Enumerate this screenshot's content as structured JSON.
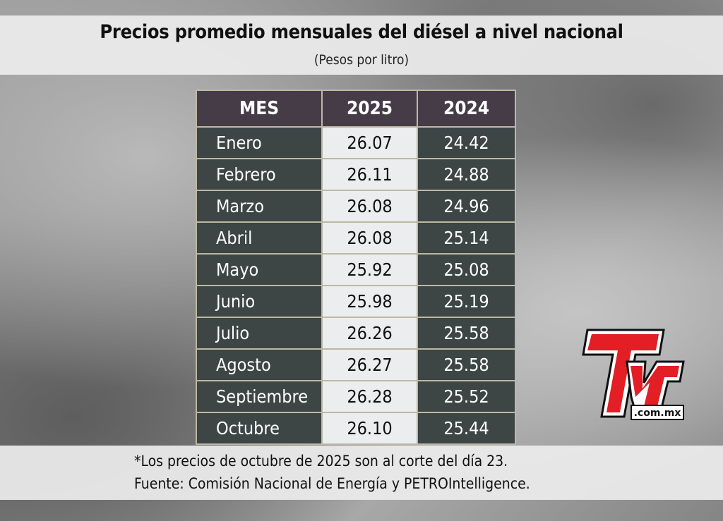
{
  "header": {
    "title": "Precios promedio mensuales del diésel a nivel nacional",
    "subtitle": "(Pesos por litro)"
  },
  "chart_data": {
    "type": "table",
    "title": "Precios promedio mensuales del diésel a nivel nacional",
    "subtitle": "(Pesos por litro)",
    "columns": [
      "MES",
      "2025",
      "2024"
    ],
    "rows": [
      [
        "Enero",
        "26.07",
        "24.42"
      ],
      [
        "Febrero",
        "26.11",
        "24.88"
      ],
      [
        "Marzo",
        "26.08",
        "24.96"
      ],
      [
        "Abril",
        "26.08",
        "25.14"
      ],
      [
        "Mayo",
        "25.92",
        "25.08"
      ],
      [
        "Junio",
        "25.98",
        "25.19"
      ],
      [
        "Julio",
        "26.26",
        "25.58"
      ],
      [
        "Agosto",
        "26.27",
        "25.58"
      ],
      [
        "Septiembre",
        "26.28",
        "25.52"
      ],
      [
        "Octubre",
        "26.10",
        "25.44"
      ]
    ]
  },
  "footer": {
    "note": "*Los precios de octubre de 2025 son al corte del día 23.",
    "source": "Fuente: Comisión Nacional de Energía y PETROIntelligence."
  },
  "logo": {
    "text": "TyT",
    "domain": ".com.mx",
    "color": "#e31e24"
  }
}
